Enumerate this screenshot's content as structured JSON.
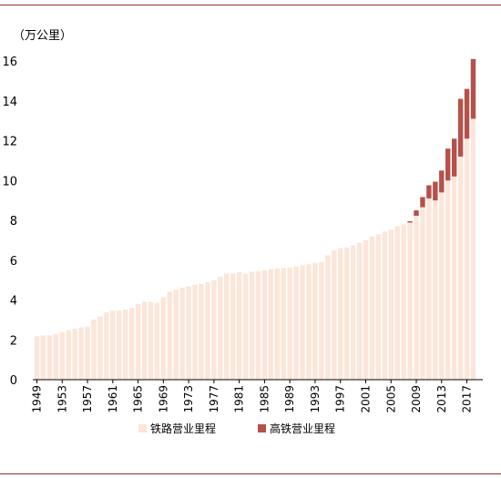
{
  "chart_data": {
    "type": "bar",
    "stacked": true,
    "unit_label": "（万公里）",
    "ylim": [
      0,
      16
    ],
    "yticks": [
      0,
      2,
      4,
      6,
      8,
      10,
      12,
      14,
      16
    ],
    "grid": false,
    "legend_position": "bottom",
    "x_tick_labels": [
      "1949",
      "1953",
      "1957",
      "1961",
      "1965",
      "1969",
      "1973",
      "1977",
      "1981",
      "1985",
      "1989",
      "1993",
      "1997",
      "2001",
      "2005",
      "2009",
      "2013",
      "2017"
    ],
    "categories": [
      "1949",
      "1950",
      "1951",
      "1952",
      "1953",
      "1954",
      "1955",
      "1956",
      "1957",
      "1958",
      "1959",
      "1960",
      "1961",
      "1962",
      "1963",
      "1964",
      "1965",
      "1966",
      "1967",
      "1968",
      "1969",
      "1970",
      "1971",
      "1972",
      "1973",
      "1974",
      "1975",
      "1976",
      "1977",
      "1978",
      "1979",
      "1980",
      "1981",
      "1982",
      "1983",
      "1984",
      "1985",
      "1986",
      "1987",
      "1988",
      "1989",
      "1990",
      "1991",
      "1992",
      "1993",
      "1994",
      "1995",
      "1996",
      "1997",
      "1998",
      "1999",
      "2000",
      "2001",
      "2002",
      "2003",
      "2004",
      "2005",
      "2006",
      "2007",
      "2008",
      "2009",
      "2010",
      "2011",
      "2012",
      "2013",
      "2014",
      "2015",
      "2016",
      "2017",
      "2018"
    ],
    "series": [
      {
        "name": "铁路营业里程",
        "color": "#fbe6d9",
        "values": [
          2.18,
          2.22,
          2.23,
          2.29,
          2.38,
          2.48,
          2.56,
          2.62,
          2.67,
          3.02,
          3.17,
          3.38,
          3.46,
          3.47,
          3.52,
          3.6,
          3.8,
          3.91,
          3.91,
          3.85,
          4.15,
          4.41,
          4.52,
          4.62,
          4.69,
          4.76,
          4.81,
          4.89,
          4.99,
          5.17,
          5.32,
          5.33,
          5.39,
          5.31,
          5.42,
          5.45,
          5.5,
          5.55,
          5.58,
          5.6,
          5.62,
          5.68,
          5.75,
          5.8,
          5.86,
          5.9,
          6.24,
          6.49,
          6.6,
          6.64,
          6.74,
          6.87,
          7.01,
          7.19,
          7.3,
          7.44,
          7.54,
          7.71,
          7.8,
          7.89,
          8.23,
          8.66,
          9.1,
          9.0,
          9.4,
          10.0,
          10.2,
          11.2,
          12.1,
          13.1
        ]
      },
      {
        "name": "高铁营业里程",
        "color": "#b5514b",
        "values": [
          0,
          0,
          0,
          0,
          0,
          0,
          0,
          0,
          0,
          0,
          0,
          0,
          0,
          0,
          0,
          0,
          0,
          0,
          0,
          0,
          0,
          0,
          0,
          0,
          0,
          0,
          0,
          0,
          0,
          0,
          0,
          0,
          0,
          0,
          0,
          0,
          0,
          0,
          0,
          0,
          0,
          0,
          0,
          0,
          0,
          0,
          0,
          0,
          0,
          0,
          0,
          0,
          0,
          0,
          0,
          0,
          0,
          0,
          0,
          0.07,
          0.27,
          0.51,
          0.66,
          0.94,
          1.1,
          1.6,
          1.9,
          2.9,
          2.5,
          3.0
        ]
      }
    ]
  }
}
